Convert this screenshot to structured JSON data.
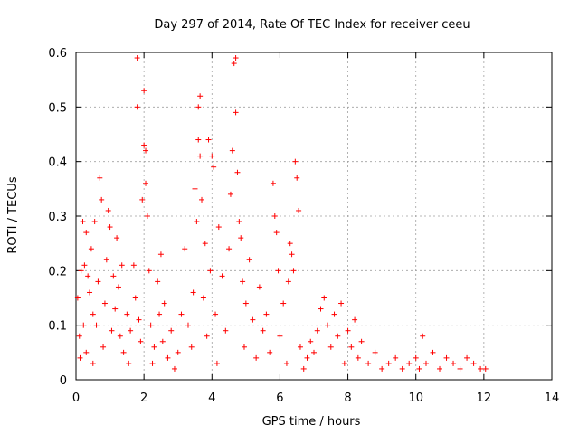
{
  "chart_data": {
    "type": "scatter",
    "title": "Day 297 of 2014, Rate Of TEC Index for receiver ceeu",
    "xlabel": "GPS time / hours",
    "ylabel": "ROTI / TECUs",
    "xlim": [
      0,
      14
    ],
    "ylim": [
      0,
      0.6
    ],
    "xticks": [
      0,
      2,
      4,
      6,
      8,
      10,
      12,
      14
    ],
    "yticks": [
      0,
      0.1,
      0.2,
      0.3,
      0.4,
      0.5,
      0.6
    ],
    "xtick_labels": [
      "0",
      "2",
      "4",
      "6",
      "8",
      "10",
      "12",
      "14"
    ],
    "ytick_labels": [
      "0",
      "0.1",
      "0.2",
      "0.3",
      "0.4",
      "0.5",
      "0.6"
    ],
    "grid": true,
    "marker": "+",
    "color": "#ff0000",
    "series": [
      {
        "name": "ROTI",
        "points": [
          [
            0.05,
            0.15
          ],
          [
            0.1,
            0.08
          ],
          [
            0.12,
            0.04
          ],
          [
            0.15,
            0.2
          ],
          [
            0.2,
            0.29
          ],
          [
            0.22,
            0.1
          ],
          [
            0.25,
            0.21
          ],
          [
            0.3,
            0.27
          ],
          [
            0.3,
            0.05
          ],
          [
            0.35,
            0.19
          ],
          [
            0.4,
            0.16
          ],
          [
            0.45,
            0.24
          ],
          [
            0.5,
            0.12
          ],
          [
            0.5,
            0.03
          ],
          [
            0.55,
            0.29
          ],
          [
            0.6,
            0.1
          ],
          [
            0.65,
            0.18
          ],
          [
            0.7,
            0.37
          ],
          [
            0.75,
            0.33
          ],
          [
            0.8,
            0.06
          ],
          [
            0.85,
            0.14
          ],
          [
            0.9,
            0.22
          ],
          [
            0.95,
            0.31
          ],
          [
            1.0,
            0.28
          ],
          [
            1.05,
            0.09
          ],
          [
            1.1,
            0.19
          ],
          [
            1.15,
            0.13
          ],
          [
            1.2,
            0.26
          ],
          [
            1.25,
            0.17
          ],
          [
            1.3,
            0.08
          ],
          [
            1.35,
            0.21
          ],
          [
            1.4,
            0.05
          ],
          [
            1.5,
            0.12
          ],
          [
            1.55,
            0.03
          ],
          [
            1.6,
            0.09
          ],
          [
            1.7,
            0.21
          ],
          [
            1.75,
            0.15
          ],
          [
            1.8,
            0.5
          ],
          [
            1.8,
            0.59
          ],
          [
            1.85,
            0.11
          ],
          [
            1.9,
            0.07
          ],
          [
            1.95,
            0.33
          ],
          [
            2.0,
            0.43
          ],
          [
            2.0,
            0.53
          ],
          [
            2.05,
            0.36
          ],
          [
            2.05,
            0.42
          ],
          [
            2.1,
            0.3
          ],
          [
            2.15,
            0.2
          ],
          [
            2.2,
            0.1
          ],
          [
            2.25,
            0.03
          ],
          [
            2.3,
            0.06
          ],
          [
            2.4,
            0.18
          ],
          [
            2.45,
            0.12
          ],
          [
            2.5,
            0.23
          ],
          [
            2.55,
            0.07
          ],
          [
            2.6,
            0.14
          ],
          [
            2.7,
            0.04
          ],
          [
            2.8,
            0.09
          ],
          [
            2.9,
            0.02
          ],
          [
            3.0,
            0.05
          ],
          [
            3.1,
            0.12
          ],
          [
            3.2,
            0.24
          ],
          [
            3.3,
            0.1
          ],
          [
            3.4,
            0.06
          ],
          [
            3.45,
            0.16
          ],
          [
            3.5,
            0.35
          ],
          [
            3.55,
            0.29
          ],
          [
            3.6,
            0.44
          ],
          [
            3.6,
            0.5
          ],
          [
            3.65,
            0.41
          ],
          [
            3.65,
            0.52
          ],
          [
            3.7,
            0.33
          ],
          [
            3.75,
            0.15
          ],
          [
            3.8,
            0.25
          ],
          [
            3.85,
            0.08
          ],
          [
            3.9,
            0.44
          ],
          [
            3.95,
            0.2
          ],
          [
            4.0,
            0.41
          ],
          [
            4.05,
            0.39
          ],
          [
            4.1,
            0.12
          ],
          [
            4.15,
            0.03
          ],
          [
            4.2,
            0.28
          ],
          [
            4.3,
            0.19
          ],
          [
            4.4,
            0.09
          ],
          [
            4.5,
            0.24
          ],
          [
            4.55,
            0.34
          ],
          [
            4.6,
            0.42
          ],
          [
            4.65,
            0.58
          ],
          [
            4.7,
            0.59
          ],
          [
            4.7,
            0.49
          ],
          [
            4.75,
            0.38
          ],
          [
            4.8,
            0.29
          ],
          [
            4.85,
            0.26
          ],
          [
            4.9,
            0.18
          ],
          [
            4.95,
            0.06
          ],
          [
            5.0,
            0.14
          ],
          [
            5.1,
            0.22
          ],
          [
            5.2,
            0.11
          ],
          [
            5.3,
            0.04
          ],
          [
            5.4,
            0.17
          ],
          [
            5.5,
            0.09
          ],
          [
            5.6,
            0.12
          ],
          [
            5.7,
            0.05
          ],
          [
            5.8,
            0.36
          ],
          [
            5.85,
            0.3
          ],
          [
            5.9,
            0.27
          ],
          [
            5.95,
            0.2
          ],
          [
            6.0,
            0.08
          ],
          [
            6.1,
            0.14
          ],
          [
            6.2,
            0.03
          ],
          [
            6.25,
            0.18
          ],
          [
            6.3,
            0.25
          ],
          [
            6.35,
            0.23
          ],
          [
            6.4,
            0.2
          ],
          [
            6.45,
            0.4
          ],
          [
            6.5,
            0.37
          ],
          [
            6.55,
            0.31
          ],
          [
            6.6,
            0.06
          ],
          [
            6.7,
            0.02
          ],
          [
            6.8,
            0.04
          ],
          [
            6.9,
            0.07
          ],
          [
            7.0,
            0.05
          ],
          [
            7.1,
            0.09
          ],
          [
            7.2,
            0.13
          ],
          [
            7.3,
            0.15
          ],
          [
            7.4,
            0.1
          ],
          [
            7.5,
            0.06
          ],
          [
            7.6,
            0.12
          ],
          [
            7.7,
            0.08
          ],
          [
            7.8,
            0.14
          ],
          [
            7.9,
            0.03
          ],
          [
            8.0,
            0.09
          ],
          [
            8.1,
            0.06
          ],
          [
            8.2,
            0.11
          ],
          [
            8.3,
            0.04
          ],
          [
            8.4,
            0.07
          ],
          [
            8.6,
            0.03
          ],
          [
            8.8,
            0.05
          ],
          [
            9.0,
            0.02
          ],
          [
            9.2,
            0.03
          ],
          [
            9.4,
            0.04
          ],
          [
            9.6,
            0.02
          ],
          [
            9.8,
            0.03
          ],
          [
            10.0,
            0.04
          ],
          [
            10.1,
            0.02
          ],
          [
            10.2,
            0.08
          ],
          [
            10.3,
            0.03
          ],
          [
            10.5,
            0.05
          ],
          [
            10.7,
            0.02
          ],
          [
            10.9,
            0.04
          ],
          [
            11.1,
            0.03
          ],
          [
            11.3,
            0.02
          ],
          [
            11.5,
            0.04
          ],
          [
            11.7,
            0.03
          ],
          [
            11.9,
            0.02
          ],
          [
            12.05,
            0.02
          ]
        ]
      }
    ]
  }
}
